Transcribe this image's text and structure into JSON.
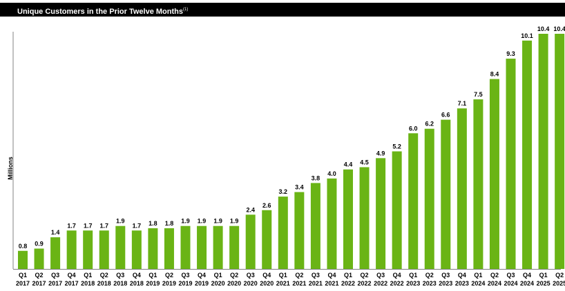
{
  "header": {
    "title": "Unique Customers in the Prior Twelve Months",
    "footnote_marker": "(1)"
  },
  "chart_data": {
    "type": "bar",
    "title": "Unique Customers in the Prior Twelve Months",
    "ylabel": "Millions",
    "xlabel": "",
    "ylim": [
      0,
      10.4
    ],
    "grid": false,
    "bar_color": "#6ab415",
    "categories": [
      [
        "Q1",
        "2017"
      ],
      [
        "Q2",
        "2017"
      ],
      [
        "Q3",
        "2017"
      ],
      [
        "Q4",
        "2017"
      ],
      [
        "Q1",
        "2018"
      ],
      [
        "Q2",
        "2018"
      ],
      [
        "Q3",
        "2018"
      ],
      [
        "Q4",
        "2018"
      ],
      [
        "Q1",
        "2019"
      ],
      [
        "Q2",
        "2019"
      ],
      [
        "Q3",
        "2019"
      ],
      [
        "Q4",
        "2019"
      ],
      [
        "Q1",
        "2020"
      ],
      [
        "Q2",
        "2020"
      ],
      [
        "Q3",
        "2020"
      ],
      [
        "Q4",
        "2020"
      ],
      [
        "Q1",
        "2021"
      ],
      [
        "Q2",
        "2021"
      ],
      [
        "Q3",
        "2021"
      ],
      [
        "Q4",
        "2021"
      ],
      [
        "Q1",
        "2022"
      ],
      [
        "Q2",
        "2022"
      ],
      [
        "Q3",
        "2022"
      ],
      [
        "Q4",
        "2022"
      ],
      [
        "Q1",
        "2023"
      ],
      [
        "Q2",
        "2023"
      ],
      [
        "Q3",
        "2023"
      ],
      [
        "Q4",
        "2023"
      ],
      [
        "Q1",
        "2024"
      ],
      [
        "Q2",
        "2024"
      ],
      [
        "Q3",
        "2024"
      ],
      [
        "Q4",
        "2024"
      ],
      [
        "Q1",
        "2025"
      ],
      [
        "Q2",
        "2025"
      ]
    ],
    "values": [
      0.8,
      0.9,
      1.4,
      1.7,
      1.7,
      1.7,
      1.9,
      1.7,
      1.8,
      1.8,
      1.9,
      1.9,
      1.9,
      1.9,
      2.4,
      2.6,
      3.2,
      3.4,
      3.8,
      4.0,
      4.4,
      4.5,
      4.9,
      5.2,
      6.0,
      6.2,
      6.6,
      7.1,
      7.5,
      8.4,
      9.3,
      10.1,
      10.4,
      10.4
    ],
    "labels": [
      "0.8",
      "0.9",
      "1.4",
      "1.7",
      "1.7",
      "1.7",
      "1.9",
      "1.7",
      "1.8",
      "1.8",
      "1.9",
      "1.9",
      "1.9",
      "1.9",
      "2.4",
      "2.6",
      "3.2",
      "3.4",
      "3.8",
      "4.0",
      "4.4",
      "4.5",
      "4.9",
      "5.2",
      "6.0",
      "6.2",
      "6.6",
      "7.1",
      "7.5",
      "8.4",
      "9.3",
      "10.1",
      "10.4",
      "10.4"
    ]
  }
}
